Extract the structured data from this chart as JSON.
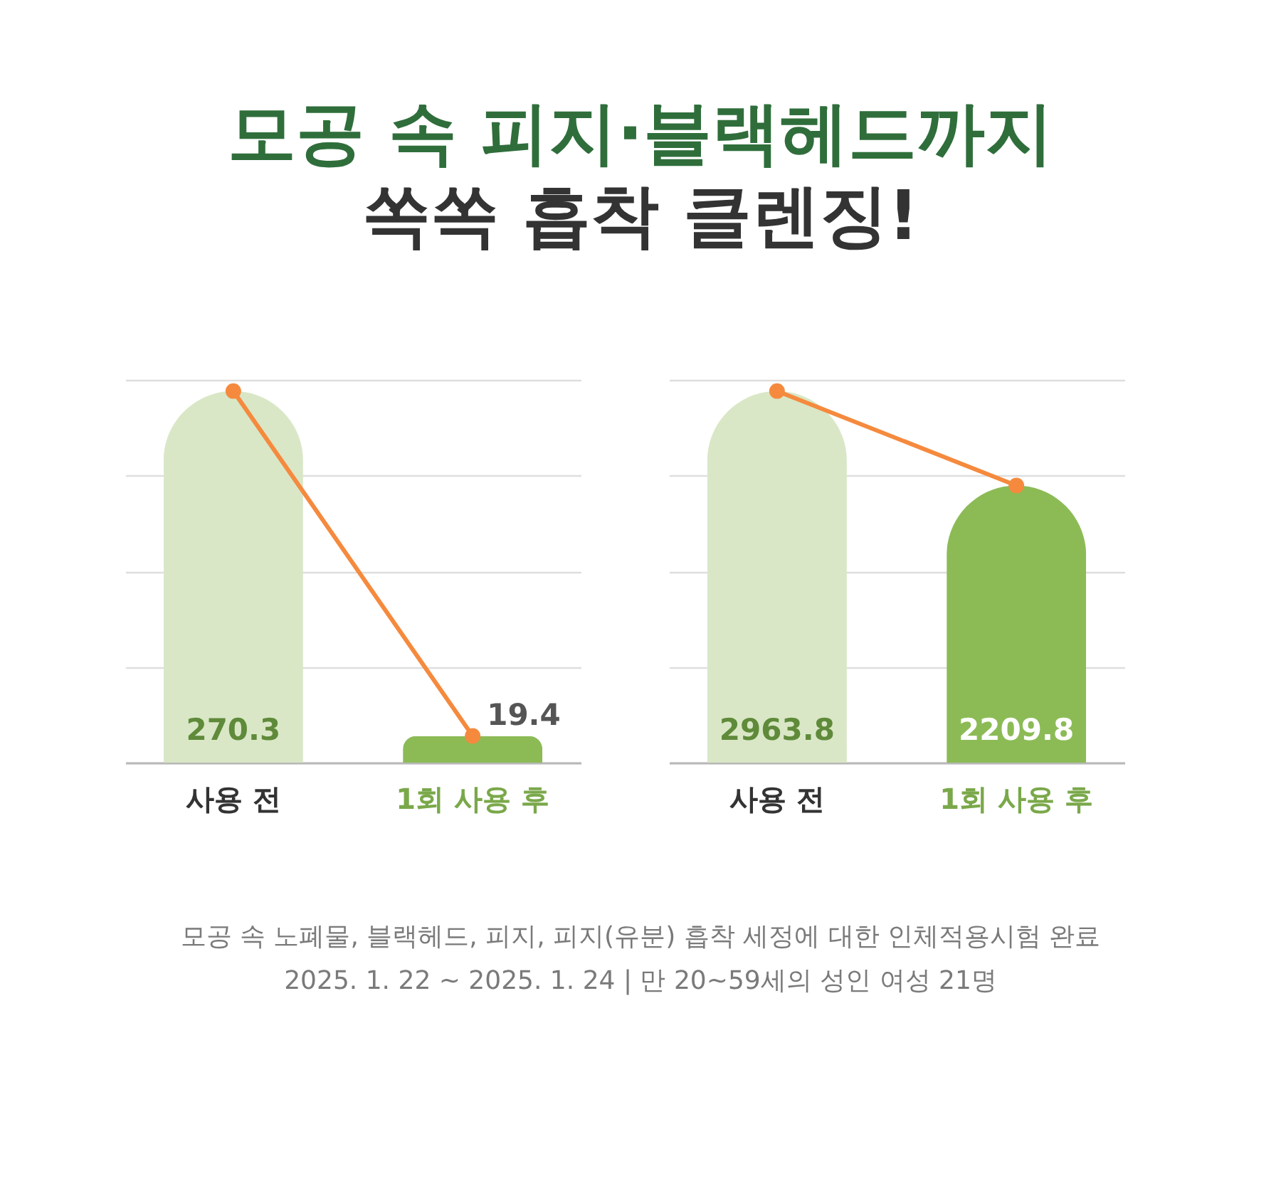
{
  "chart_data": [
    {
      "type": "bar",
      "title": "모공 속 피지·블랙헤드까지\n쏙쏙 흡착 클렌징!",
      "categories": [
        "사용 전",
        "1회 사용 후"
      ],
      "series": [
        {
          "colors": [
            "#d9e7c6",
            "#8cbb56"
          ],
          "values": [
            270.3,
            19.4
          ],
          "value_labels": [
            "270.3",
            "19.4"
          ]
        },
        {
          "type": "line",
          "color": "#f58a3e",
          "values": [
            270.3,
            19.4
          ]
        }
      ],
      "marker": "circle",
      "grid": "y",
      "tick_labels": "x",
      "annotations": [
        "모공 속 노폐물, 블랙헤드, 피지, 피지(유분) 흡착 세정에 대한 인체적용시험 완료",
        "2025. 1. 22 ~ 2025. 1. 24 | 만 20~59세의 성인 여성 21명"
      ]
    },
    {
      "type": "bar",
      "categories": [
        "사용 전",
        "1회 사용 후"
      ],
      "series": [
        {
          "colors": [
            "#d9e7c6",
            "#8cbb56"
          ],
          "values": [
            2963.8,
            2209.8
          ],
          "value_labels": [
            "2963.8",
            "2209.8"
          ]
        },
        {
          "type": "line",
          "color": "#f58a3e",
          "values": [
            2963.8,
            2209.8
          ]
        }
      ],
      "marker": "circle",
      "grid": "y",
      "tick_labels": "x"
    }
  ]
}
